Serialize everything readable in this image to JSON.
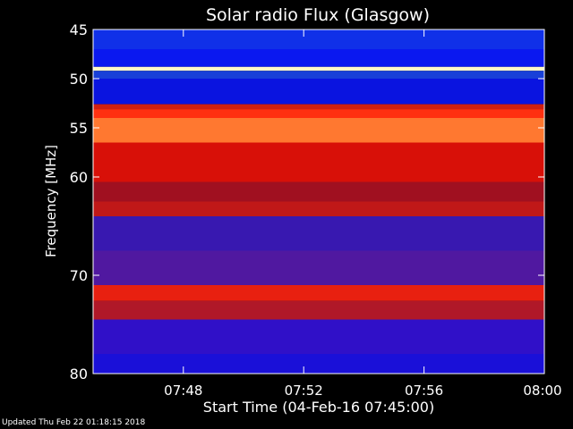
{
  "chart_data": {
    "type": "heatmap",
    "title": "Solar radio Flux (Glasgow)",
    "ylabel": "Frequency [MHz]",
    "xlabel": "Start Time (04-Feb-16 07:45:00)",
    "x_ticks": [
      "07:48",
      "07:52",
      "07:56",
      "08:00"
    ],
    "x_tick_values_min": [
      3,
      7,
      11,
      15
    ],
    "xlim_min": [
      0,
      15
    ],
    "y_ticks": [
      45,
      50,
      55,
      60,
      70,
      80
    ],
    "ylim": [
      45,
      80
    ],
    "y_reversed": true,
    "frequency_bands": [
      {
        "f_start": 45.0,
        "f_end": 47.0,
        "color": "#1030e8"
      },
      {
        "f_start": 47.0,
        "f_end": 48.8,
        "color": "#0a18f0"
      },
      {
        "f_start": 48.8,
        "f_end": 49.2,
        "color": "#fff8c8"
      },
      {
        "f_start": 49.2,
        "f_end": 50.0,
        "color": "#1840d8"
      },
      {
        "f_start": 50.0,
        "f_end": 52.6,
        "color": "#0a14e0"
      },
      {
        "f_start": 52.6,
        "f_end": 53.1,
        "color": "#d02010"
      },
      {
        "f_start": 53.1,
        "f_end": 54.0,
        "color": "#ff3010"
      },
      {
        "f_start": 54.0,
        "f_end": 56.5,
        "color": "#ff7830"
      },
      {
        "f_start": 56.5,
        "f_end": 60.5,
        "color": "#d81008"
      },
      {
        "f_start": 60.5,
        "f_end": 62.5,
        "color": "#a01020"
      },
      {
        "f_start": 62.5,
        "f_end": 64.0,
        "color": "#c01818"
      },
      {
        "f_start": 64.0,
        "f_end": 67.5,
        "color": "#3818b0"
      },
      {
        "f_start": 67.5,
        "f_end": 71.0,
        "color": "#5018a0"
      },
      {
        "f_start": 71.0,
        "f_end": 72.6,
        "color": "#e82010"
      },
      {
        "f_start": 72.6,
        "f_end": 74.5,
        "color": "#b01828"
      },
      {
        "f_start": 74.5,
        "f_end": 78.0,
        "color": "#3010c8"
      },
      {
        "f_start": 78.0,
        "f_end": 80.0,
        "color": "#1a10d8"
      }
    ],
    "colors": {
      "axis": "#ffffff",
      "background": "#000000"
    }
  },
  "footer": {
    "updated": "Updated Thu Feb 22 01:18:15 2018"
  }
}
